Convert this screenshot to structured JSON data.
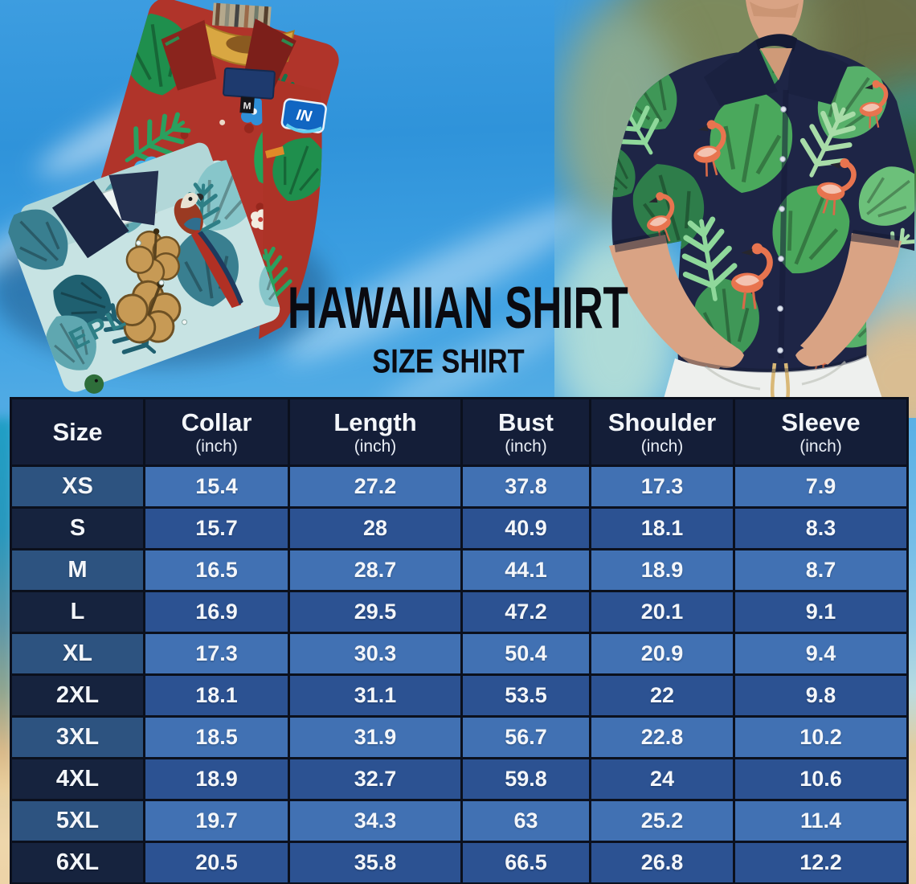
{
  "hero": {
    "title": "HAWAIIAN SHIRT",
    "subtitle": "SIZE SHIRT",
    "red_shirt_size_tag": "M",
    "teal_shirt_print_text": "EPL",
    "red_shirt_sleeve_logo_text": "IN"
  },
  "size_table": {
    "columns": [
      {
        "label": "Size",
        "unit": ""
      },
      {
        "label": "Collar",
        "unit": "(inch)"
      },
      {
        "label": "Length",
        "unit": "(inch)"
      },
      {
        "label": "Bust",
        "unit": "(inch)"
      },
      {
        "label": "Shoulder",
        "unit": "(inch)"
      },
      {
        "label": "Sleeve",
        "unit": "(inch)"
      }
    ],
    "rows": [
      {
        "size": "XS",
        "values": [
          "15.4",
          "27.2",
          "37.8",
          "17.3",
          "7.9"
        ]
      },
      {
        "size": "S",
        "values": [
          "15.7",
          "28",
          "40.9",
          "18.1",
          "8.3"
        ]
      },
      {
        "size": "M",
        "values": [
          "16.5",
          "28.7",
          "44.1",
          "18.9",
          "8.7"
        ]
      },
      {
        "size": "L",
        "values": [
          "16.9",
          "29.5",
          "47.2",
          "20.1",
          "9.1"
        ]
      },
      {
        "size": "XL",
        "values": [
          "17.3",
          "30.3",
          "50.4",
          "20.9",
          "9.4"
        ]
      },
      {
        "size": "2XL",
        "values": [
          "18.1",
          "31.1",
          "53.5",
          "22",
          "9.8"
        ]
      },
      {
        "size": "3XL",
        "values": [
          "18.5",
          "31.9",
          "56.7",
          "22.8",
          "10.2"
        ]
      },
      {
        "size": "4XL",
        "values": [
          "18.9",
          "32.7",
          "59.8",
          "24",
          "10.6"
        ]
      },
      {
        "size": "5XL",
        "values": [
          "19.7",
          "34.3",
          "63",
          "25.2",
          "11.4"
        ]
      },
      {
        "size": "6XL",
        "values": [
          "20.5",
          "35.8",
          "66.5",
          "26.8",
          "12.2"
        ]
      }
    ]
  },
  "colors": {
    "table_header_bg": "#141e38",
    "row_odd_size_bg": "#2d5380",
    "row_odd_value_bg": "#4171b3",
    "row_even_size_bg": "#16233e",
    "row_even_value_bg": "#2c5292",
    "table_border": "#0b101d",
    "sky_blue": "#3d9de0",
    "sand": "#ecd2a4",
    "title_text": "#0a0a10"
  }
}
